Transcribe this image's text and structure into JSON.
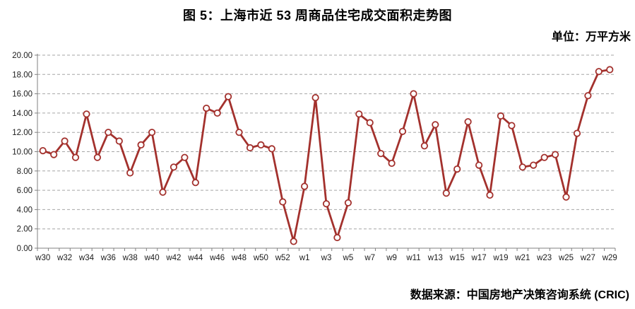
{
  "title": "图 5：上海市近 53 周商品住宅成交面积走势图",
  "unit_label": "单位：万平方米",
  "source_label": "数据来源：中国房地产决策咨询系统 (CRIC)",
  "chart_data": {
    "type": "line",
    "title": "图 5：上海市近 53 周商品住宅成交面积走势图",
    "unit": "万平方米",
    "categories": [
      "w30",
      "w31",
      "w32",
      "w33",
      "w34",
      "w35",
      "w36",
      "w37",
      "w38",
      "w39",
      "w40",
      "w41",
      "w42",
      "w43",
      "w44",
      "w45",
      "w46",
      "w47",
      "w48",
      "w49",
      "w50",
      "w51",
      "w52",
      "w53",
      "w1",
      "w2",
      "w3",
      "w4",
      "w5",
      "w6",
      "w7",
      "w8",
      "w9",
      "w10",
      "w11",
      "w12",
      "w13",
      "w14",
      "w15",
      "w16",
      "w17",
      "w18",
      "w19",
      "w20",
      "w21",
      "w22",
      "w23",
      "w24",
      "w25",
      "w26",
      "w27",
      "w28",
      "w29"
    ],
    "values": [
      10.1,
      9.7,
      11.1,
      9.4,
      13.9,
      9.4,
      12.0,
      11.1,
      7.8,
      10.7,
      12.0,
      5.8,
      8.4,
      9.4,
      6.8,
      14.5,
      14.0,
      15.7,
      12.0,
      10.4,
      10.7,
      10.3,
      4.8,
      0.7,
      6.4,
      15.6,
      4.6,
      1.1,
      4.7,
      13.9,
      13.0,
      9.8,
      8.8,
      12.1,
      16.0,
      10.6,
      12.8,
      5.7,
      8.2,
      13.1,
      8.6,
      5.5,
      13.7,
      12.7,
      8.4,
      8.6,
      9.4,
      9.7,
      5.3,
      11.9,
      15.8,
      18.3,
      18.5
    ],
    "x_tick_labels_shown": [
      "w30",
      "w32",
      "w34",
      "w36",
      "w38",
      "w40",
      "w42",
      "w44",
      "w46",
      "w48",
      "w50",
      "w52",
      "w1",
      "w3",
      "w5",
      "w7",
      "w9",
      "w11",
      "w13",
      "w15",
      "w17",
      "w19",
      "w21",
      "w23",
      "w25",
      "w27",
      "w29"
    ],
    "ylim": [
      0,
      20
    ],
    "ytick_step": 2,
    "ytick_label_format": "0.00",
    "grid": "dashed-horizontal",
    "legend": "none",
    "line_color": "#A3312D",
    "marker_style": "open-circle",
    "marker_fill": "#FFFFFF",
    "grid_color": "#A6A6A6",
    "axis_color": "#808080",
    "axis_text_color": "#1A1A1A"
  }
}
